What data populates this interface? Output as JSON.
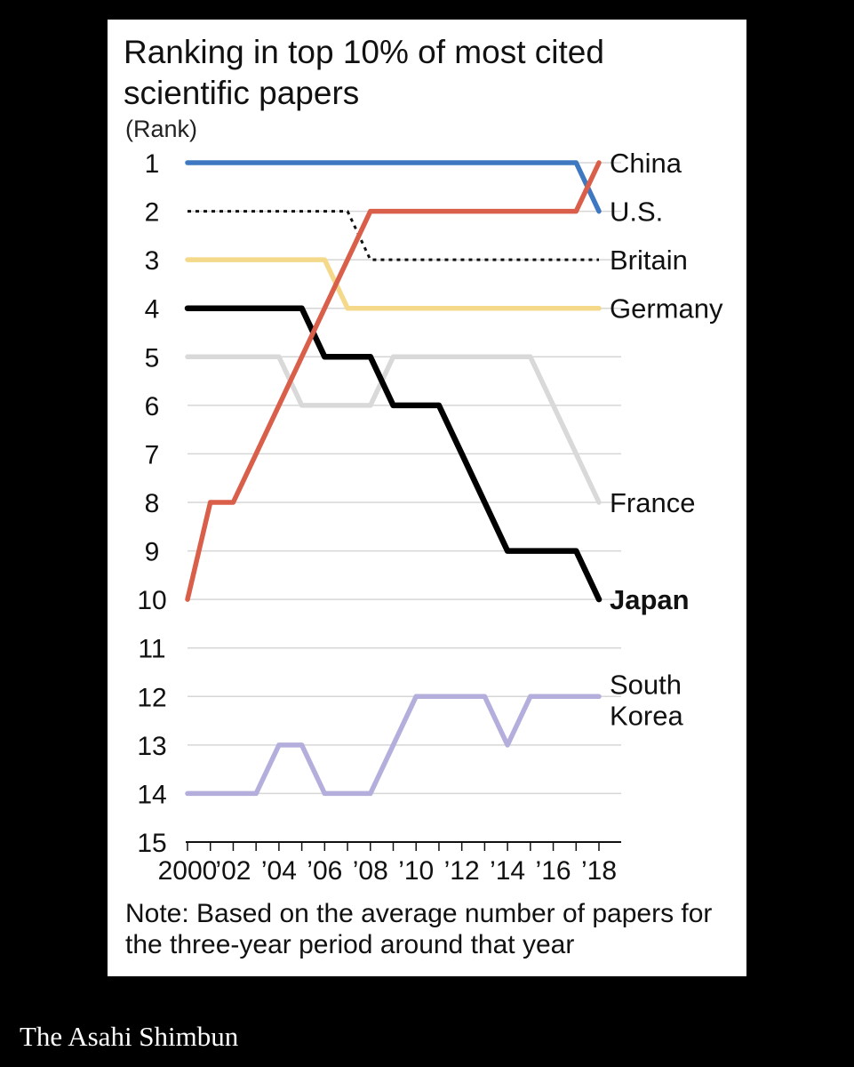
{
  "chart_data": {
    "type": "line",
    "title": "Ranking in top 10% of most cited scientific papers",
    "ylabel": "(Rank)",
    "xlabel": "",
    "ylim": [
      1,
      15
    ],
    "y_inverted": true,
    "yticks": [
      1,
      2,
      3,
      4,
      5,
      6,
      7,
      8,
      9,
      10,
      11,
      12,
      13,
      14,
      15
    ],
    "x": [
      2000,
      2001,
      2002,
      2003,
      2004,
      2005,
      2006,
      2007,
      2008,
      2009,
      2010,
      2011,
      2012,
      2013,
      2014,
      2015,
      2016,
      2017,
      2018
    ],
    "xtick_labels": [
      {
        "x": 2000,
        "label": "2000"
      },
      {
        "x": 2002,
        "label": "’02"
      },
      {
        "x": 2004,
        "label": "’04"
      },
      {
        "x": 2006,
        "label": "’06"
      },
      {
        "x": 2008,
        "label": "’08"
      },
      {
        "x": 2010,
        "label": "’10"
      },
      {
        "x": 2012,
        "label": "’12"
      },
      {
        "x": 2014,
        "label": "’14"
      },
      {
        "x": 2016,
        "label": "’16"
      },
      {
        "x": 2018,
        "label": "’18"
      }
    ],
    "grid": true,
    "series": [
      {
        "name": "France",
        "color": "#d9d9d9",
        "style": "solid",
        "values": [
          5,
          5,
          5,
          5,
          5,
          6,
          6,
          6,
          6,
          5,
          5,
          5,
          5,
          5,
          5,
          5,
          6,
          7,
          8
        ]
      },
      {
        "name": "South Korea",
        "label_lines": [
          "South",
          "Korea"
        ],
        "color": "#b3aedb",
        "style": "solid",
        "values": [
          14,
          14,
          14,
          14,
          13,
          13,
          14,
          14,
          14,
          13,
          12,
          12,
          12,
          12,
          13,
          12,
          12,
          12,
          12
        ]
      },
      {
        "name": "Germany",
        "color": "#f5d98a",
        "style": "solid",
        "values": [
          3,
          3,
          3,
          3,
          3,
          3,
          3,
          4,
          4,
          4,
          4,
          4,
          4,
          4,
          4,
          4,
          4,
          4,
          4
        ]
      },
      {
        "name": "Britain",
        "color": "#111111",
        "style": "dotted",
        "values": [
          2,
          2,
          2,
          2,
          2,
          2,
          2,
          2,
          3,
          3,
          3,
          3,
          3,
          3,
          3,
          3,
          3,
          3,
          3
        ]
      },
      {
        "name": "U.S.",
        "color": "#3d78c0",
        "style": "solid",
        "values": [
          1,
          1,
          1,
          1,
          1,
          1,
          1,
          1,
          1,
          1,
          1,
          1,
          1,
          1,
          1,
          1,
          1,
          1,
          2
        ]
      },
      {
        "name": "Japan",
        "color": "#000000",
        "style": "solid",
        "bold": true,
        "values": [
          4,
          4,
          4,
          4,
          4,
          4,
          5,
          5,
          5,
          6,
          6,
          6,
          7,
          8,
          9,
          9,
          9,
          9,
          10
        ]
      },
      {
        "name": "China",
        "color": "#d95f4a",
        "style": "solid",
        "values": [
          10,
          8,
          8,
          7,
          6,
          5,
          4,
          3,
          2,
          2,
          2,
          2,
          2,
          2,
          2,
          2,
          2,
          2,
          1
        ]
      }
    ],
    "note": "Note: Based on the average number of papers for the three-year period around that year"
  },
  "source": "The Asahi Shimbun"
}
